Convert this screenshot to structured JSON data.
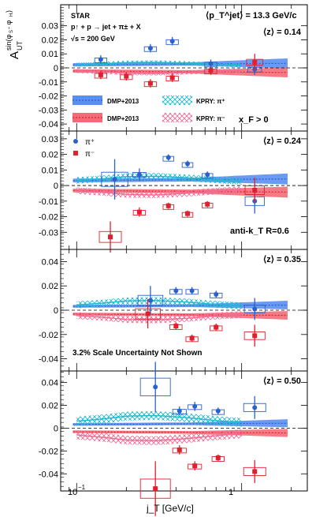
{
  "figure": {
    "ylabel": "A_UT^{sin(φS − φH)}",
    "xlabel": "j_T [GeV/c]",
    "experiment": "STAR",
    "reaction": "p↑ + p → jet + π± + X",
    "energy": "√s = 200 GeV",
    "jet_pt": "⟨p_T^jet⟩ = 13.3 GeV/c",
    "xf": "x_F > 0",
    "jet_algo": "anti-k_T R=0.6",
    "scale_note": "3.2% Scale Uncertainty Not Shown",
    "legend": {
      "band_blue": "DMP+2013",
      "band_red": "DMP+2013",
      "hatch_blue": "KPRY: π⁺",
      "hatch_red": "KPRY: π⁻",
      "pip": "π⁺",
      "pim": "π⁻"
    },
    "colors": {
      "pip": "#2a62c9",
      "pim": "#e0202e",
      "dmp_blue": "#5a8ff0",
      "dmp_red": "#f36b78",
      "kpry_blue": "#1fb9cf",
      "kpry_red": "#f06a92"
    }
  },
  "chart_data": [
    {
      "type": "scatter",
      "panel": "⟨z⟩ = 0.14",
      "x_scale": "log",
      "xlim": [
        0.08,
        2.5
      ],
      "ylim": [
        -0.045,
        0.045
      ],
      "yticks": [
        -0.04,
        -0.03,
        -0.02,
        -0.01,
        0,
        0.01,
        0.02,
        0.03
      ],
      "series": [
        {
          "name": "π⁺",
          "x": [
            0.14,
            0.28,
            0.38,
            0.65,
            1.2
          ],
          "y": [
            0.006,
            0.014,
            0.019,
            0.003,
            -0.001
          ],
          "err": [
            0.003,
            0.003,
            0.003,
            0.003,
            0.004
          ]
        },
        {
          "name": "π⁻",
          "x": [
            0.14,
            0.2,
            0.28,
            0.38,
            0.65,
            1.2
          ],
          "y": [
            -0.005,
            -0.006,
            -0.011,
            -0.007,
            -0.002,
            0.004
          ],
          "err": [
            0.003,
            0.003,
            0.003,
            0.003,
            0.003,
            0.006
          ]
        }
      ]
    },
    {
      "type": "scatter",
      "panel": "⟨z⟩ = 0.24",
      "x_scale": "log",
      "xlim": [
        0.08,
        2.5
      ],
      "ylim": [
        -0.041,
        0.035
      ],
      "yticks": [
        -0.03,
        -0.02,
        -0.01,
        0,
        0.01,
        0.02,
        0.03
      ],
      "series": [
        {
          "name": "π⁺",
          "x": [
            0.17,
            0.24,
            0.36,
            0.47,
            0.62,
            1.2
          ],
          "y": [
            0.004,
            0.007,
            0.018,
            0.014,
            0.007,
            -0.01
          ],
          "err": [
            0.013,
            0.004,
            0.002,
            0.002,
            0.002,
            0.008
          ]
        },
        {
          "name": "π⁻",
          "x": [
            0.16,
            0.24,
            0.36,
            0.47,
            0.62,
            1.2
          ],
          "y": [
            -0.033,
            -0.017,
            -0.013,
            -0.018,
            -0.012,
            -0.003
          ],
          "err": [
            0.01,
            0.003,
            0.002,
            0.002,
            0.002,
            0.008
          ]
        }
      ]
    },
    {
      "type": "scatter",
      "panel": "⟨z⟩ = 0.35",
      "x_scale": "log",
      "xlim": [
        0.08,
        2.5
      ],
      "ylim": [
        -0.05,
        0.05
      ],
      "yticks": [
        -0.04,
        -0.02,
        0,
        0.02,
        0.04
      ],
      "series": [
        {
          "name": "π⁺",
          "x": [
            0.28,
            0.4,
            0.5,
            0.7,
            1.2
          ],
          "y": [
            0.008,
            0.016,
            0.016,
            0.013,
            0.001
          ],
          "err": [
            0.012,
            0.003,
            0.003,
            0.003,
            0.009
          ]
        },
        {
          "name": "π⁻",
          "x": [
            0.27,
            0.4,
            0.5,
            0.7,
            1.2
          ],
          "y": [
            -0.003,
            -0.013,
            -0.023,
            -0.014,
            -0.021
          ],
          "err": [
            0.012,
            0.003,
            0.003,
            0.003,
            0.009
          ]
        }
      ]
    },
    {
      "type": "scatter",
      "panel": "⟨z⟩ = 0.50",
      "x_scale": "log",
      "xlim": [
        0.08,
        2.5
      ],
      "ylim": [
        -0.055,
        0.05
      ],
      "yticks": [
        -0.04,
        -0.02,
        0,
        0.02,
        0.04
      ],
      "series": [
        {
          "name": "π⁺",
          "x": [
            0.3,
            0.42,
            0.52,
            0.72,
            1.2
          ],
          "y": [
            0.036,
            0.015,
            0.019,
            0.015,
            0.018
          ],
          "err": [
            0.022,
            0.004,
            0.004,
            0.003,
            0.01
          ]
        },
        {
          "name": "π⁻",
          "x": [
            0.3,
            0.42,
            0.52,
            0.72,
            1.2
          ],
          "y": [
            -0.053,
            -0.019,
            -0.033,
            -0.026,
            -0.038
          ],
          "err": [
            0.024,
            0.004,
            0.004,
            0.003,
            0.01
          ]
        }
      ]
    }
  ]
}
